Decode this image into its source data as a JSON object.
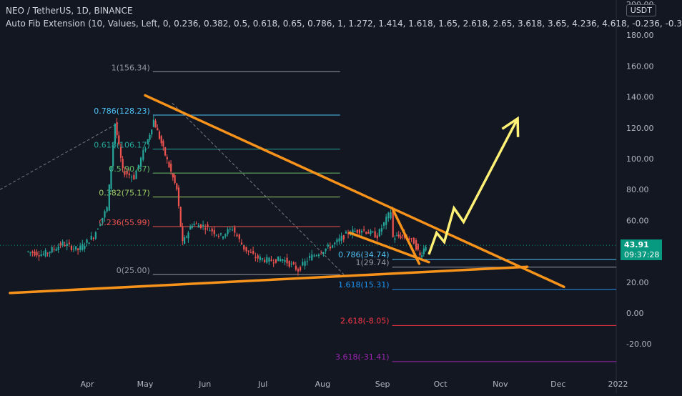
{
  "header": {
    "symbol_line": "NEO / TetherUS, 1D, BINANCE",
    "indicator_line": "Auto Fib Extension (10, Values, Left, 0, 0.236, 0.382, 0.5, 0.618, 0.65, 0.786, 1, 1.272, 1.414, 1.618, 1.65, 2.618, 2.65, 3.618, 3.65, 4.236, 4.618, -0.236, -0.3"
  },
  "currency_button": "USDT",
  "price_badge": "43.91",
  "timer_badge": "09:37:28",
  "colors": {
    "background": "#131722",
    "up_candle": "#26a69a",
    "down_candle": "#ef5350",
    "trendline": "#f7931a",
    "projection": "#fff176"
  },
  "chart_data": {
    "type": "candlestick",
    "y_axis": {
      "ticks": [
        "200.00",
        "180.00",
        "160.00",
        "140.00",
        "120.00",
        "100.00",
        "80.00",
        "60.00",
        "40.00",
        "20.00",
        "0.00",
        "-20.00"
      ],
      "range": [
        -38,
        203
      ]
    },
    "x_axis": {
      "ticks": [
        "Apr",
        "May",
        "Jun",
        "Jul",
        "Aug",
        "Sep",
        "Oct",
        "Nov",
        "Dec",
        "2022"
      ]
    },
    "price_series": [
      {
        "date": "2021-03-01",
        "value": 40
      },
      {
        "date": "2021-03-10",
        "value": 38
      },
      {
        "date": "2021-03-20",
        "value": 45
      },
      {
        "date": "2021-03-28",
        "value": 41
      },
      {
        "date": "2021-04-05",
        "value": 50
      },
      {
        "date": "2021-04-12",
        "value": 68
      },
      {
        "date": "2021-04-16",
        "value": 123
      },
      {
        "date": "2021-04-20",
        "value": 92
      },
      {
        "date": "2021-04-26",
        "value": 88
      },
      {
        "date": "2021-05-02",
        "value": 108
      },
      {
        "date": "2021-05-06",
        "value": 125
      },
      {
        "date": "2021-05-10",
        "value": 110
      },
      {
        "date": "2021-05-14",
        "value": 95
      },
      {
        "date": "2021-05-18",
        "value": 80
      },
      {
        "date": "2021-05-21",
        "value": 45
      },
      {
        "date": "2021-05-26",
        "value": 58
      },
      {
        "date": "2021-06-02",
        "value": 56
      },
      {
        "date": "2021-06-10",
        "value": 50
      },
      {
        "date": "2021-06-16",
        "value": 55
      },
      {
        "date": "2021-06-22",
        "value": 42
      },
      {
        "date": "2021-06-28",
        "value": 36
      },
      {
        "date": "2021-07-05",
        "value": 34
      },
      {
        "date": "2021-07-12",
        "value": 35
      },
      {
        "date": "2021-07-20",
        "value": 28
      },
      {
        "date": "2021-07-26",
        "value": 36
      },
      {
        "date": "2021-08-01",
        "value": 40
      },
      {
        "date": "2021-08-08",
        "value": 45
      },
      {
        "date": "2021-08-15",
        "value": 52
      },
      {
        "date": "2021-08-22",
        "value": 54
      },
      {
        "date": "2021-08-30",
        "value": 50
      },
      {
        "date": "2021-09-06",
        "value": 66
      },
      {
        "date": "2021-09-07",
        "value": 49
      },
      {
        "date": "2021-09-12",
        "value": 50
      },
      {
        "date": "2021-09-18",
        "value": 46
      },
      {
        "date": "2021-09-21",
        "value": 37
      },
      {
        "date": "2021-09-24",
        "value": 43.91
      }
    ],
    "fib_levels_main": [
      {
        "label": "1(156.34)",
        "value": 156.34,
        "color": "#9598a1"
      },
      {
        "label": "0.786(128.23)",
        "value": 128.23,
        "color": "#4fc3f7"
      },
      {
        "label": "0.618(106.17)",
        "value": 106.17,
        "color": "#26a69a"
      },
      {
        "label": "0.5(90.67)",
        "value": 90.67,
        "color": "#66bb6a"
      },
      {
        "label": "0.382(75.17)",
        "value": 75.17,
        "color": "#9ccc65"
      },
      {
        "label": "0.236(55.99)",
        "value": 55.99,
        "color": "#ef5350"
      },
      {
        "label": "0(25.00)",
        "value": 25.0,
        "color": "#9598a1"
      }
    ],
    "fib_levels_recent": [
      {
        "label": "0.786(34.74)",
        "value": 34.74,
        "color": "#4fc3f7"
      },
      {
        "label": "1(29.74)",
        "value": 29.74,
        "color": "#9598a1"
      },
      {
        "label": "1.618(15.31)",
        "value": 15.31,
        "color": "#2196f3"
      },
      {
        "label": "2.618(-8.05)",
        "value": -8.05,
        "color": "#f23645"
      },
      {
        "label": "3.618(-31.41)",
        "value": -31.41,
        "color": "#9c27b0"
      }
    ],
    "trendlines": [
      {
        "from": {
          "date": "2021-05-01",
          "value": 141
        },
        "to": {
          "date": "2021-12-04",
          "value": 17
        }
      },
      {
        "from": {
          "date": "2021-02-20",
          "value": 13
        },
        "to": {
          "date": "2021-11-15",
          "value": 30
        }
      },
      {
        "from": {
          "date": "2021-09-06",
          "value": 68
        },
        "to": {
          "date": "2021-09-20",
          "value": 32
        }
      },
      {
        "from": {
          "date": "2021-08-15",
          "value": 52
        },
        "to": {
          "date": "2021-09-25",
          "value": 33
        }
      }
    ],
    "projection_path": [
      {
        "date": "2021-09-25",
        "value": 38
      },
      {
        "date": "2021-09-29",
        "value": 52
      },
      {
        "date": "2021-10-03",
        "value": 46
      },
      {
        "date": "2021-10-08",
        "value": 68
      },
      {
        "date": "2021-10-13",
        "value": 59
      },
      {
        "date": "2021-11-10",
        "value": 126
      }
    ],
    "last_price": 43.91
  }
}
